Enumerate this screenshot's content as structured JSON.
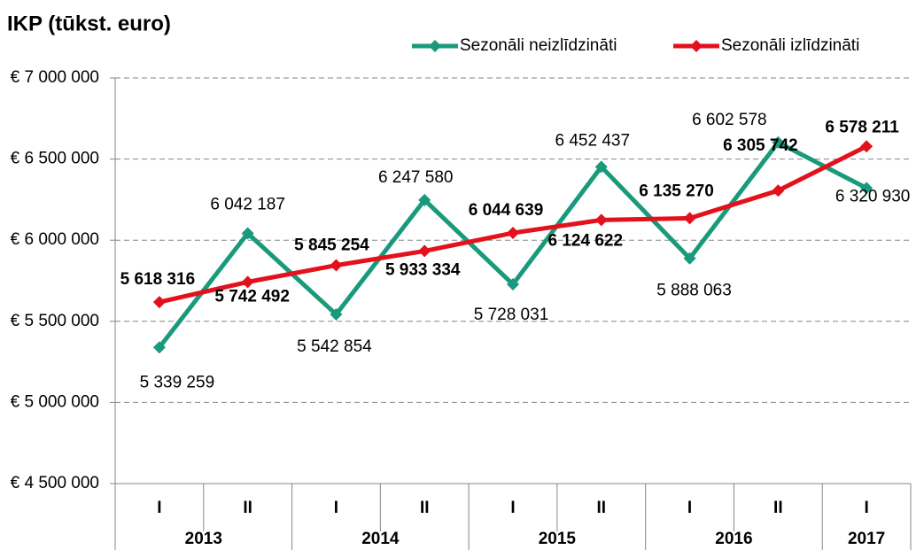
{
  "chart_data": {
    "type": "line",
    "title": "IKP (tūkst. euro)",
    "categories": [
      "I",
      "II",
      "I",
      "II",
      "I",
      "II",
      "I",
      "II",
      "I"
    ],
    "category_groups": [
      "2013",
      "2013",
      "2014",
      "2014",
      "2015",
      "2015",
      "2016",
      "2016",
      "2017"
    ],
    "series": [
      {
        "name": "Sezonāli neizlīdzināti",
        "color": "#1a9a7c",
        "values": [
          5339259,
          6042187,
          5542854,
          6247580,
          5728031,
          6452437,
          5888063,
          6602578,
          6320930
        ],
        "value_labels": [
          "5 339 259",
          "6 042 187",
          "5 542 854",
          "6 247 580",
          "5 728 031",
          "6 452 437",
          "5 888 063",
          "6 602 578",
          "6 320 930"
        ]
      },
      {
        "name": "Sezonāli izlīdzināti",
        "color": "#e3111b",
        "values": [
          5618316,
          5742492,
          5845254,
          5933334,
          6044639,
          6124622,
          6135270,
          6305742,
          6578211
        ],
        "value_labels": [
          "5 618 316",
          "5 742 492",
          "5 845 254",
          "5 933 334",
          "6 044 639",
          "6 124 622",
          "6 135 270",
          "6 305 742",
          "6 578 211"
        ]
      }
    ],
    "ylim": [
      4500000,
      7000000
    ],
    "yticks": [
      {
        "value": 4500000,
        "label": "€ 4 500 000"
      },
      {
        "value": 5000000,
        "label": "€ 5 000 000"
      },
      {
        "value": 5500000,
        "label": "€ 5 500 000"
      },
      {
        "value": 6000000,
        "label": "€ 6 000 000"
      },
      {
        "value": 6500000,
        "label": "€ 6 500 000"
      },
      {
        "value": 7000000,
        "label": "€ 7 000 000"
      }
    ],
    "grid": true,
    "legend": "top-right"
  }
}
